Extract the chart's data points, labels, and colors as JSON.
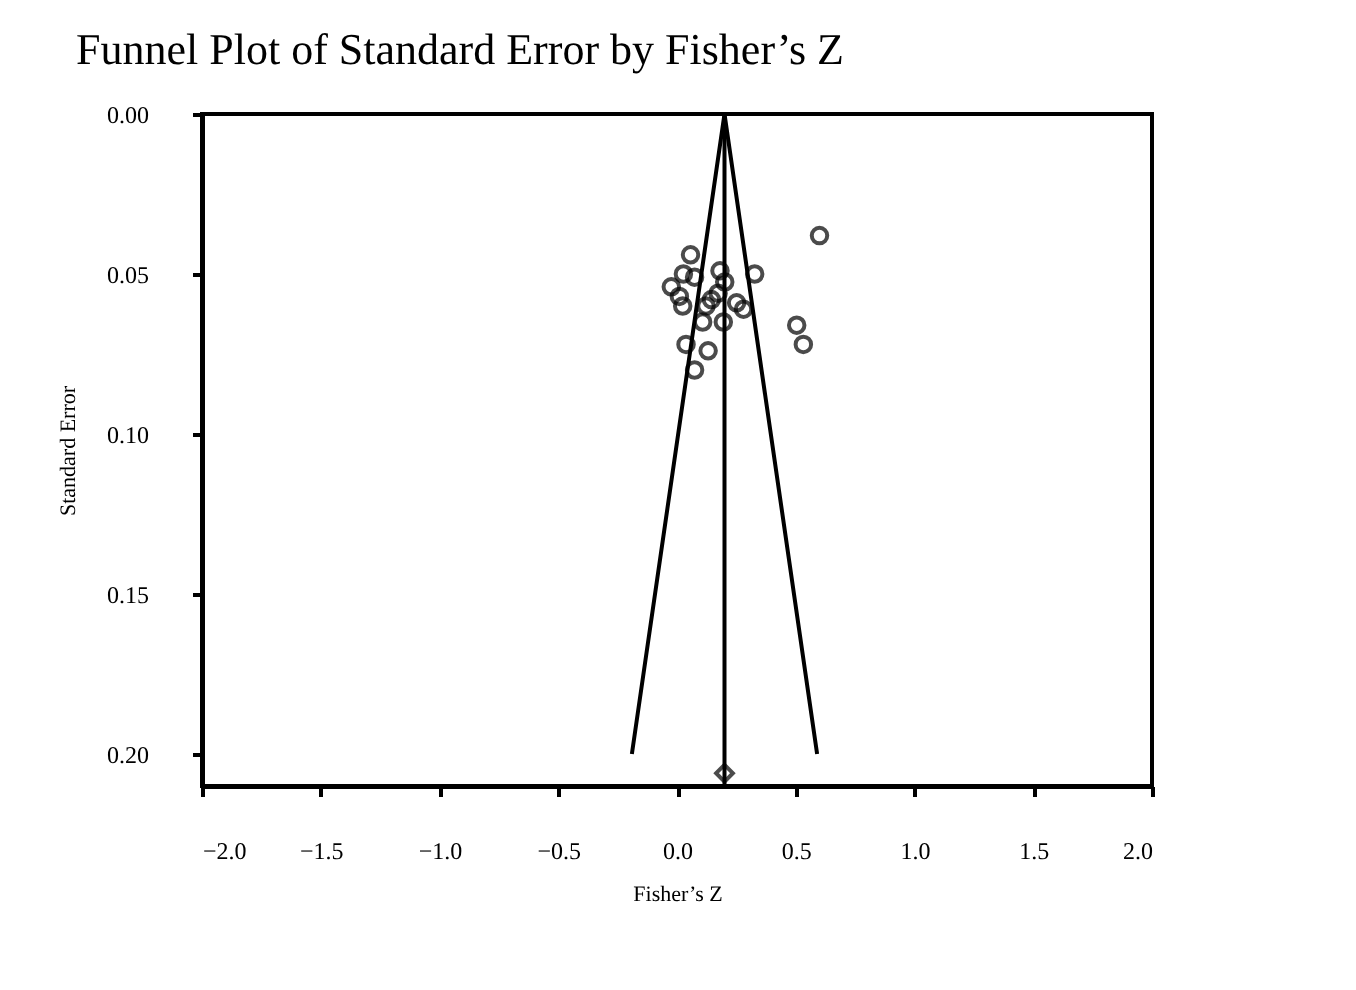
{
  "chart_data": {
    "type": "scatter",
    "title": "Funnel Plot of Standard Error by Fisher’s Z",
    "xlabel": "Fisher’s Z",
    "ylabel": "Standard Error",
    "xlim": [
      -2,
      2
    ],
    "xticks": [
      {
        "value": -2,
        "label": "−2.0"
      },
      {
        "value": -1.5,
        "label": "−1.5"
      },
      {
        "value": -1,
        "label": "−1.0"
      },
      {
        "value": -0.5,
        "label": "−0.5"
      },
      {
        "value": 0,
        "label": "0.0"
      },
      {
        "value": 0.5,
        "label": "0.5"
      },
      {
        "value": 1,
        "label": "1.0"
      },
      {
        "value": 1.5,
        "label": "1.5"
      },
      {
        "value": 2,
        "label": "2.0"
      }
    ],
    "ylim": [
      0.21,
      0
    ],
    "yticks": [
      {
        "value": 0,
        "label": "0.00"
      },
      {
        "value": 0.05,
        "label": "0.05"
      },
      {
        "value": 0.1,
        "label": "0.10"
      },
      {
        "value": 0.15,
        "label": "0.15"
      },
      {
        "value": 0.2,
        "label": "0.20"
      }
    ],
    "grid": false,
    "marker": "circle",
    "ref_lines": [
      {
        "axis": "x",
        "value": 0.2,
        "color": "#000000"
      }
    ],
    "series": [
      {
        "color": "#000000",
        "x": [
          0.6,
          0.057,
          -0.024,
          0.027,
          0.074,
          0.01,
          0.024,
          0.181,
          0.201,
          0.327,
          0.145,
          0.122,
          0.173,
          0.251,
          0.28,
          0.108,
          0.195,
          0.504,
          0.532,
          0.038,
          0.131,
          0.074
        ],
        "values": [
          0.038,
          0.044,
          0.054,
          0.05,
          0.051,
          0.057,
          0.06,
          0.049,
          0.0525,
          0.05,
          0.058,
          0.06,
          0.056,
          0.059,
          0.061,
          0.065,
          0.065,
          0.066,
          0.072,
          0.072,
          0.074,
          0.08
        ]
      },
      {
        "marker": "diamond",
        "color": "#000000",
        "x": [
          0.2
        ],
        "values": [
          0.206
        ]
      },
      {
        "type": "line",
        "marker": "none",
        "color": "#000000",
        "x": [
          -0.19,
          0.2,
          0.59
        ],
        "values": [
          0.2,
          0,
          0.2
        ]
      }
    ]
  }
}
